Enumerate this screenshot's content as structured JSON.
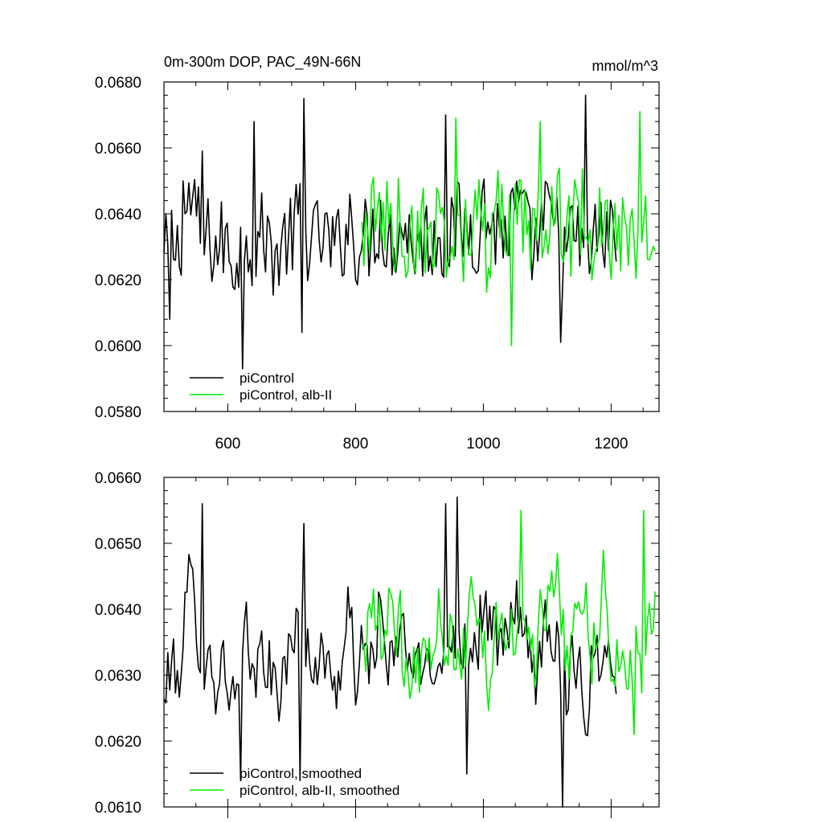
{
  "chart_data": [
    {
      "type": "line",
      "title": "0m-300m DOP, PAC_49N-66N",
      "units": "mmol/m^3",
      "xlim": [
        500,
        1275
      ],
      "ylim": [
        0.058,
        0.068
      ],
      "xticks": [
        600,
        800,
        1000,
        1200
      ],
      "xtick_labels": [
        "600",
        "800",
        "1000",
        "1200"
      ],
      "yticks": [
        0.058,
        0.06,
        0.062,
        0.064,
        0.066,
        0.068
      ],
      "ytick_labels": [
        "0.0580",
        "0.0600",
        "0.0620",
        "0.0640",
        "0.0660",
        "0.0680"
      ],
      "legend_position": "bottom-left",
      "series": [
        {
          "name": "piControl",
          "color": "#000000",
          "x_start": 500,
          "x_step": 10,
          "values": [
            0.0625,
            0.0633,
            0.0628,
            0.0636,
            0.0645,
            0.064,
            0.063,
            0.0633,
            0.0628,
            0.0632,
            0.063,
            0.0625,
            0.063,
            0.0637,
            0.0627,
            0.0634,
            0.0633,
            0.0628,
            0.0627,
            0.0633,
            0.0632,
            0.064,
            0.0632,
            0.0633,
            0.0632,
            0.0633,
            0.063,
            0.0629,
            0.0632,
            0.064,
            0.063,
            0.0633,
            0.0632,
            0.0635,
            0.064,
            0.063,
            0.0632,
            0.0637,
            0.0635,
            0.0631,
            0.063,
            0.0633,
            0.0632,
            0.0633,
            0.0631,
            0.0633,
            0.0638,
            0.0635,
            0.0636,
            0.0633,
            0.0643,
            0.0637,
            0.0635,
            0.0635,
            0.0634,
            0.0642,
            0.064,
            0.0632,
            0.0629,
            0.0634,
            0.064,
            0.0636,
            0.0632,
            0.0628,
            0.0633,
            0.0633,
            0.0622,
            0.0632,
            0.0633,
            0.0632,
            0.0636,
            0.063
          ],
          "noise_amplitude": 0.0013,
          "spikes": [
            [
              510,
              0.0608
            ],
            [
              530,
              0.065
            ],
            [
              560,
              0.0659
            ],
            [
              623,
              0.0593
            ],
            [
              640,
              0.0668
            ],
            [
              720,
              0.0675
            ],
            [
              716,
              0.0604
            ],
            [
              940,
              0.067
            ],
            [
              1120,
              0.0601
            ],
            [
              1160,
              0.0676
            ]
          ]
        },
        {
          "name": "piControl, alb-II",
          "color": "#00ee00",
          "x_start": 810,
          "x_step": 10,
          "values": [
            0.0633,
            0.0637,
            0.064,
            0.0636,
            0.0641,
            0.0635,
            0.0638,
            0.0628,
            0.0634,
            0.0632,
            0.0636,
            0.0631,
            0.064,
            0.0634,
            0.0636,
            0.0629,
            0.0633,
            0.0641,
            0.0638,
            0.0635,
            0.0625,
            0.064,
            0.064,
            0.0635,
            0.0637,
            0.0639,
            0.0633,
            0.0633,
            0.064,
            0.0641,
            0.0646,
            0.0642,
            0.063,
            0.0635,
            0.064,
            0.064,
            0.0633,
            0.0638,
            0.0646,
            0.0633,
            0.0632,
            0.0632,
            0.063,
            0.0634,
            0.063,
            0.064,
            0.0641
          ],
          "noise_amplitude": 0.0014,
          "spikes": [
            [
              956,
              0.0669
            ],
            [
              1044,
              0.06
            ],
            [
              1090,
              0.0668
            ],
            [
              1245,
              0.0671
            ],
            [
              1272,
              0.0615
            ]
          ]
        }
      ]
    },
    {
      "type": "line",
      "xlim": [
        500,
        1275
      ],
      "ylim": [
        0.061,
        0.066
      ],
      "xticks": [
        600,
        800,
        1000,
        1200
      ],
      "yticks": [
        0.061,
        0.062,
        0.063,
        0.064,
        0.065,
        0.066
      ],
      "ytick_labels": [
        "0.0610",
        "0.0620",
        "0.0630",
        "0.0640",
        "0.0650",
        "0.0660"
      ],
      "legend_position": "bottom-left",
      "series": [
        {
          "name": "piControl, smoothed",
          "color": "#000000",
          "x_start": 500,
          "x_step": 10,
          "values": [
            0.0625,
            0.0633,
            0.0628,
            0.0636,
            0.0645,
            0.064,
            0.063,
            0.0633,
            0.0628,
            0.0632,
            0.063,
            0.0625,
            0.063,
            0.0637,
            0.0627,
            0.0634,
            0.0633,
            0.0628,
            0.0627,
            0.0633,
            0.0632,
            0.064,
            0.0632,
            0.0633,
            0.0632,
            0.0633,
            0.063,
            0.0629,
            0.0632,
            0.064,
            0.063,
            0.0633,
            0.0632,
            0.0635,
            0.064,
            0.063,
            0.0632,
            0.0637,
            0.0635,
            0.0631,
            0.063,
            0.0633,
            0.0632,
            0.0633,
            0.0631,
            0.0633,
            0.0638,
            0.0635,
            0.0636,
            0.0633,
            0.0643,
            0.0637,
            0.0635,
            0.0635,
            0.0634,
            0.0642,
            0.064,
            0.0632,
            0.0629,
            0.0634,
            0.064,
            0.0636,
            0.0632,
            0.0628,
            0.0633,
            0.0633,
            0.0622,
            0.0632,
            0.0633,
            0.0632,
            0.0636,
            0.063
          ],
          "noise_amplitude": 0.0005,
          "spikes": [
            [
              560,
              0.0656
            ],
            [
              620,
              0.0614
            ],
            [
              720,
              0.0653
            ],
            [
              712,
              0.0614
            ],
            [
              940,
              0.0656
            ],
            [
              960,
              0.0657
            ],
            [
              975,
              0.0615
            ],
            [
              1124,
              0.061
            ]
          ]
        },
        {
          "name": "piControl, alb-II, smoothed",
          "color": "#00ee00",
          "x_start": 810,
          "x_step": 10,
          "values": [
            0.0633,
            0.0637,
            0.064,
            0.0636,
            0.0641,
            0.0635,
            0.0638,
            0.0628,
            0.0634,
            0.0632,
            0.0636,
            0.0631,
            0.064,
            0.0634,
            0.0636,
            0.0629,
            0.0633,
            0.0641,
            0.0638,
            0.0635,
            0.0625,
            0.064,
            0.064,
            0.0635,
            0.0637,
            0.0639,
            0.0633,
            0.0633,
            0.064,
            0.0641,
            0.0646,
            0.0642,
            0.063,
            0.0635,
            0.064,
            0.064,
            0.0633,
            0.0638,
            0.0646,
            0.0633,
            0.0632,
            0.0632,
            0.063,
            0.0634,
            0.063,
            0.064,
            0.0641
          ],
          "noise_amplitude": 0.0005,
          "spikes": [
            [
              1060,
              0.0655
            ],
            [
              1250,
              0.0655
            ],
            [
              1235,
              0.0621
            ],
            [
              1272,
              0.0652
            ]
          ]
        }
      ]
    }
  ]
}
